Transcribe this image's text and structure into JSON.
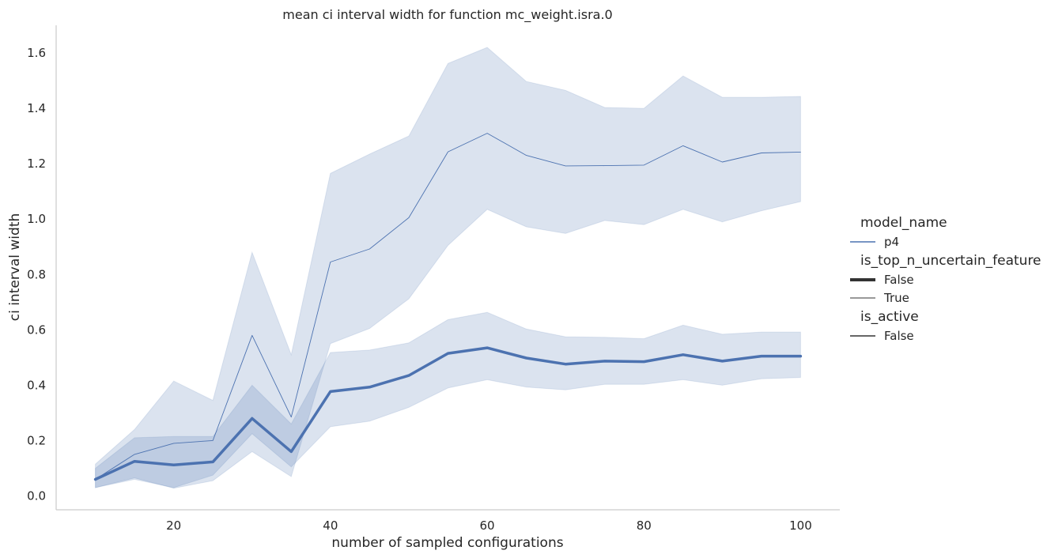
{
  "chart_data": {
    "type": "line",
    "title": "mean ci interval width for function mc_weight.isra.0",
    "xlabel": "number of sampled configurations",
    "ylabel": "ci interval width",
    "xlim": [
      5,
      105
    ],
    "ylim": [
      -0.05,
      1.7
    ],
    "xticks": [
      20,
      40,
      60,
      80,
      100
    ],
    "yticks": [
      0.0,
      0.2,
      0.4,
      0.6,
      0.8,
      1.0,
      1.2,
      1.4,
      1.6
    ],
    "grid": false,
    "legend_placement": "right",
    "x": [
      10,
      15,
      20,
      25,
      30,
      35,
      40,
      45,
      50,
      55,
      60,
      65,
      70,
      75,
      80,
      85,
      90,
      95,
      100
    ],
    "series": [
      {
        "model_name": "p4",
        "is_top_n_uncertain_feature": "False",
        "is_active": "False",
        "values": [
          0.06,
          0.125,
          0.112,
          0.123,
          0.28,
          0.16,
          0.377,
          0.393,
          0.435,
          0.515,
          0.535,
          0.498,
          0.476,
          0.487,
          0.485,
          0.51,
          0.487,
          0.505,
          0.505
        ],
        "ci_lower": [
          0.03,
          0.06,
          0.03,
          0.075,
          0.225,
          0.105,
          0.25,
          0.27,
          0.32,
          0.39,
          0.42,
          0.393,
          0.383,
          0.403,
          0.403,
          0.42,
          0.4,
          0.423,
          0.428
        ],
        "ci_upper": [
          0.1,
          0.21,
          0.215,
          0.215,
          0.4,
          0.26,
          0.518,
          0.527,
          0.553,
          0.637,
          0.663,
          0.603,
          0.575,
          0.573,
          0.568,
          0.617,
          0.584,
          0.592,
          0.592
        ]
      },
      {
        "model_name": "p4",
        "is_top_n_uncertain_feature": "True",
        "is_active": "False",
        "values": [
          0.06,
          0.15,
          0.19,
          0.2,
          0.58,
          0.285,
          0.845,
          0.892,
          1.005,
          1.243,
          1.31,
          1.23,
          1.192,
          1.193,
          1.195,
          1.265,
          1.206,
          1.239,
          1.242
        ],
        "ci_lower": [
          0.03,
          0.065,
          0.028,
          0.055,
          0.16,
          0.07,
          0.55,
          0.605,
          0.712,
          0.905,
          1.035,
          0.972,
          0.948,
          0.995,
          0.98,
          1.035,
          0.99,
          1.03,
          1.063
        ],
        "ci_upper": [
          0.115,
          0.24,
          0.415,
          0.345,
          0.88,
          0.51,
          1.165,
          1.235,
          1.3,
          1.562,
          1.62,
          1.497,
          1.465,
          1.403,
          1.4,
          1.517,
          1.44,
          1.44,
          1.443
        ]
      }
    ],
    "legend": {
      "groups": [
        {
          "title": "model_name",
          "entries": [
            {
              "label": "p4",
              "style": "color"
            }
          ]
        },
        {
          "title": "is_top_n_uncertain_feature",
          "entries": [
            {
              "label": "False",
              "style": "thick"
            },
            {
              "label": "True",
              "style": "thin"
            }
          ]
        },
        {
          "title": "is_active",
          "entries": [
            {
              "label": "False",
              "style": "solid"
            }
          ]
        }
      ]
    },
    "colors": {
      "line": "#4c72b0",
      "band": "#4c72b0",
      "legend_style_line": "#333333",
      "axis": "#cccccc",
      "text": "#262626"
    }
  }
}
